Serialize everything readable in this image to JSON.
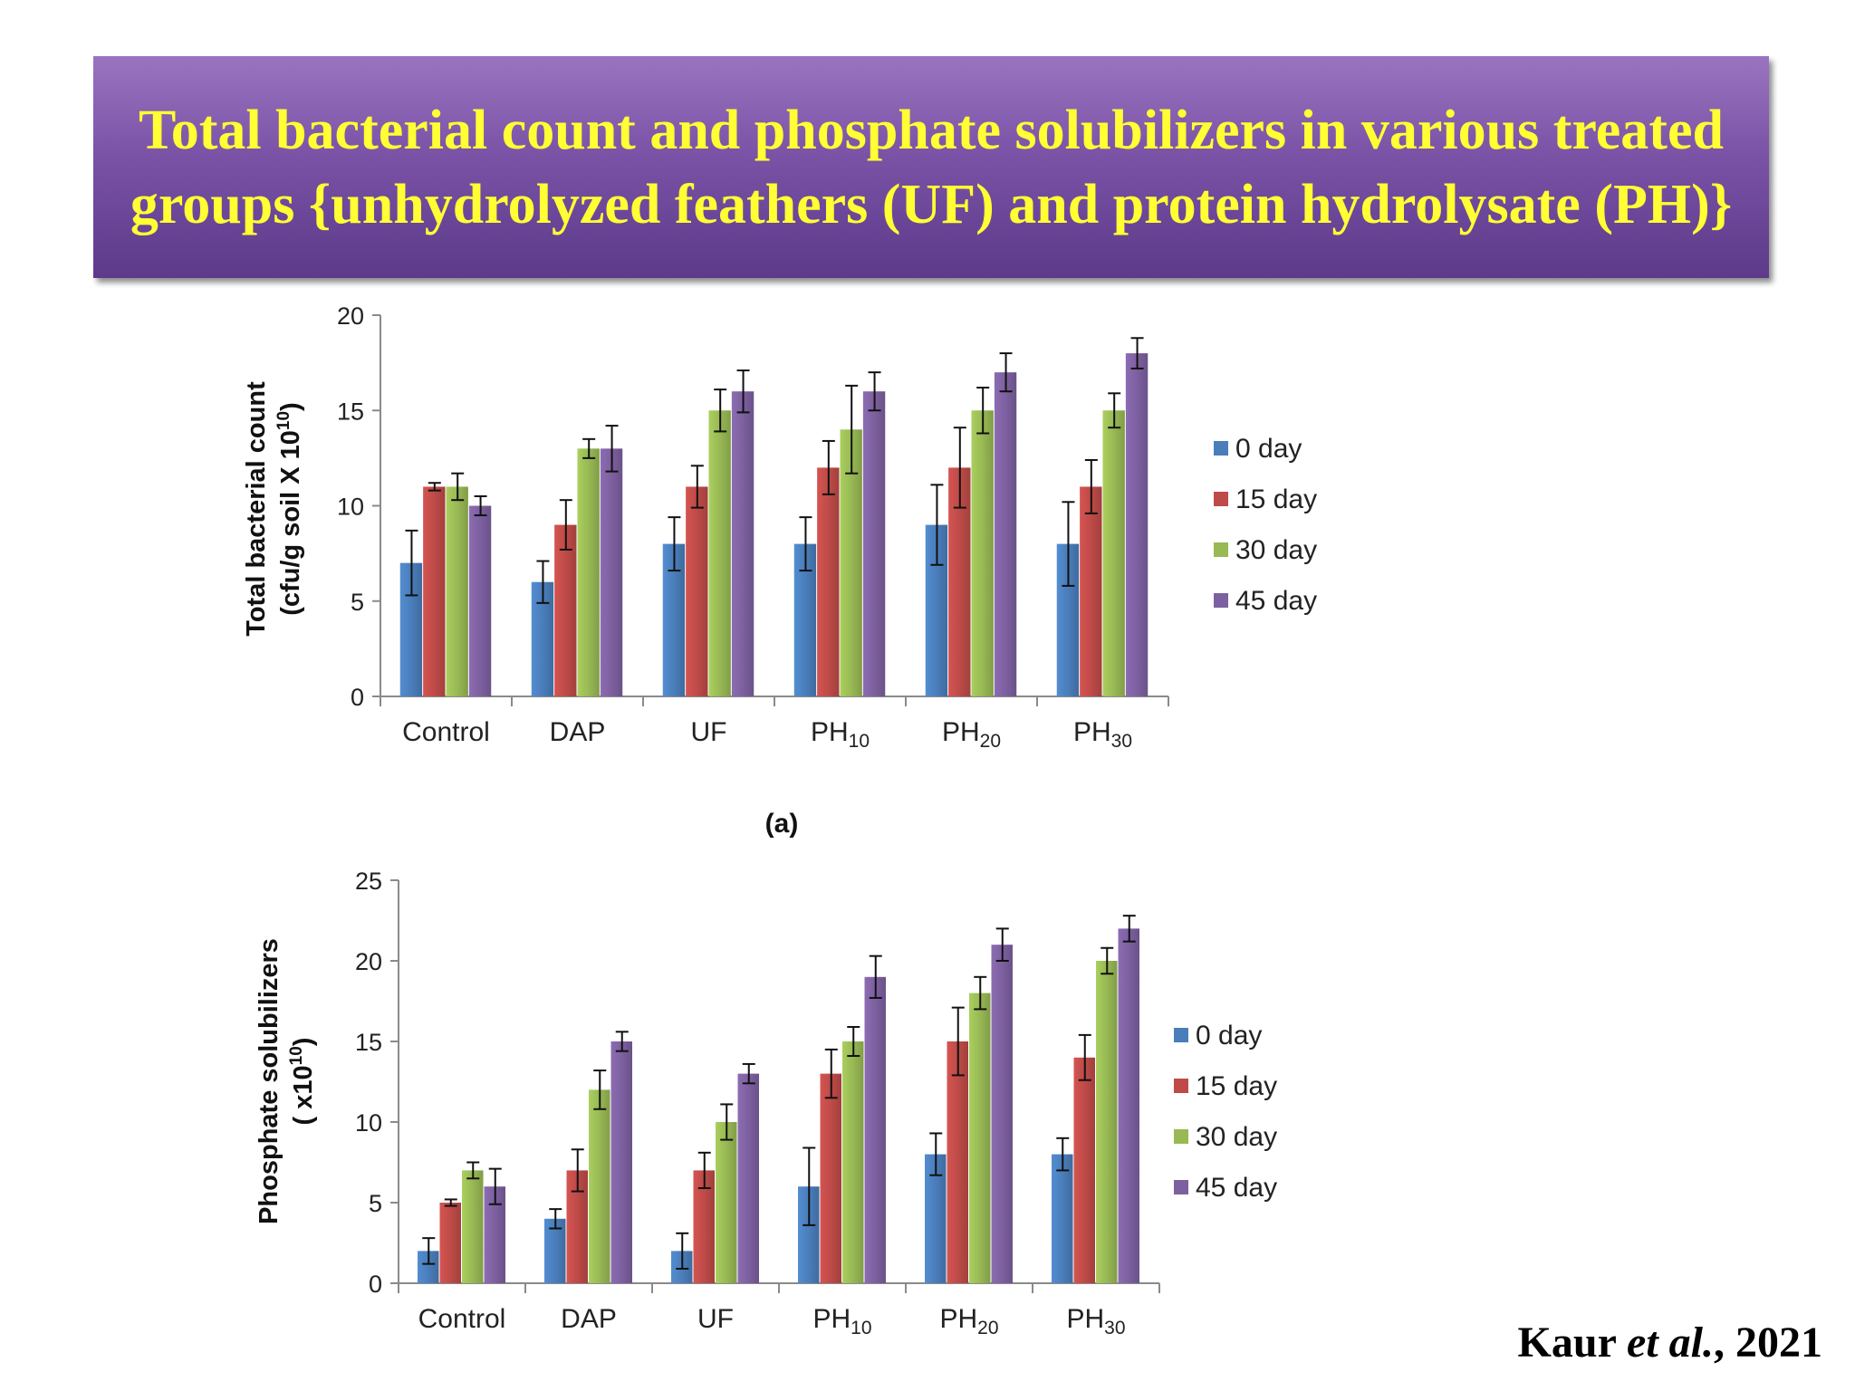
{
  "title": "Total bacterial count and phosphate solubilizers in various treated groups {unhydrolyzed feathers (UF) and protein hydrolysate (PH)}",
  "citation": {
    "author": "Kaur",
    "etal": "et al.",
    "year": ", 2021"
  },
  "colors": {
    "0 day": "#4a7ebb",
    "15 day": "#be4b48",
    "30 day": "#98b954",
    "45 day": "#7d60a0"
  },
  "chart_data": [
    {
      "type": "bar",
      "panel_label": "(a)",
      "ylabel_line1": "Total bacterial count",
      "ylabel_line2_prefix": "(cfu/g soil X 10",
      "ylabel_line2_exp": "10",
      "ylabel_line2_suffix": ")",
      "ylim": [
        0,
        20
      ],
      "yticks": [
        0,
        5,
        10,
        15,
        20
      ],
      "categories": [
        {
          "base": "Control",
          "sub": ""
        },
        {
          "base": "DAP",
          "sub": ""
        },
        {
          "base": "UF",
          "sub": ""
        },
        {
          "base": "PH",
          "sub": "10"
        },
        {
          "base": "PH",
          "sub": "20"
        },
        {
          "base": "PH",
          "sub": "30"
        }
      ],
      "legend_position": "right",
      "series": [
        {
          "name": "0 day",
          "values": [
            7,
            6,
            8,
            8,
            9,
            8
          ],
          "errors": [
            1.7,
            1.1,
            1.4,
            1.4,
            2.1,
            2.2
          ]
        },
        {
          "name": "15 day",
          "values": [
            11,
            9,
            11,
            12,
            12,
            11
          ],
          "errors": [
            0.2,
            1.3,
            1.1,
            1.4,
            2.1,
            1.4
          ]
        },
        {
          "name": "30 day",
          "values": [
            11,
            13,
            15,
            14,
            15,
            15
          ],
          "errors": [
            0.7,
            0.5,
            1.1,
            2.3,
            1.2,
            0.9
          ]
        },
        {
          "name": "45 day",
          "values": [
            10,
            13,
            16,
            16,
            17,
            18
          ],
          "errors": [
            0.5,
            1.2,
            1.1,
            1.0,
            1.0,
            0.8
          ]
        }
      ]
    },
    {
      "type": "bar",
      "ylabel_line1": "Phosphate solubilizers",
      "ylabel_line2_prefix": "( x10",
      "ylabel_line2_exp": "10",
      "ylabel_line2_suffix": ")",
      "ylim": [
        0,
        25
      ],
      "yticks": [
        0,
        5,
        10,
        15,
        20,
        25
      ],
      "categories": [
        {
          "base": "Control",
          "sub": ""
        },
        {
          "base": "DAP",
          "sub": ""
        },
        {
          "base": "UF",
          "sub": ""
        },
        {
          "base": "PH",
          "sub": "10"
        },
        {
          "base": "PH",
          "sub": "20"
        },
        {
          "base": "PH",
          "sub": "30"
        }
      ],
      "legend_position": "right",
      "series": [
        {
          "name": "0 day",
          "values": [
            2,
            4,
            2,
            6,
            8,
            8
          ],
          "errors": [
            0.8,
            0.6,
            1.1,
            2.4,
            1.3,
            1.0
          ]
        },
        {
          "name": "15 day",
          "values": [
            5,
            7,
            7,
            13,
            15,
            14
          ],
          "errors": [
            0.2,
            1.3,
            1.1,
            1.5,
            2.1,
            1.4
          ]
        },
        {
          "name": "30 day",
          "values": [
            7,
            12,
            10,
            15,
            18,
            20
          ],
          "errors": [
            0.5,
            1.2,
            1.1,
            0.9,
            1.0,
            0.8
          ]
        },
        {
          "name": "45 day",
          "values": [
            6,
            15,
            13,
            19,
            21,
            22
          ],
          "errors": [
            1.1,
            0.6,
            0.6,
            1.3,
            1.0,
            0.8
          ]
        }
      ]
    }
  ]
}
